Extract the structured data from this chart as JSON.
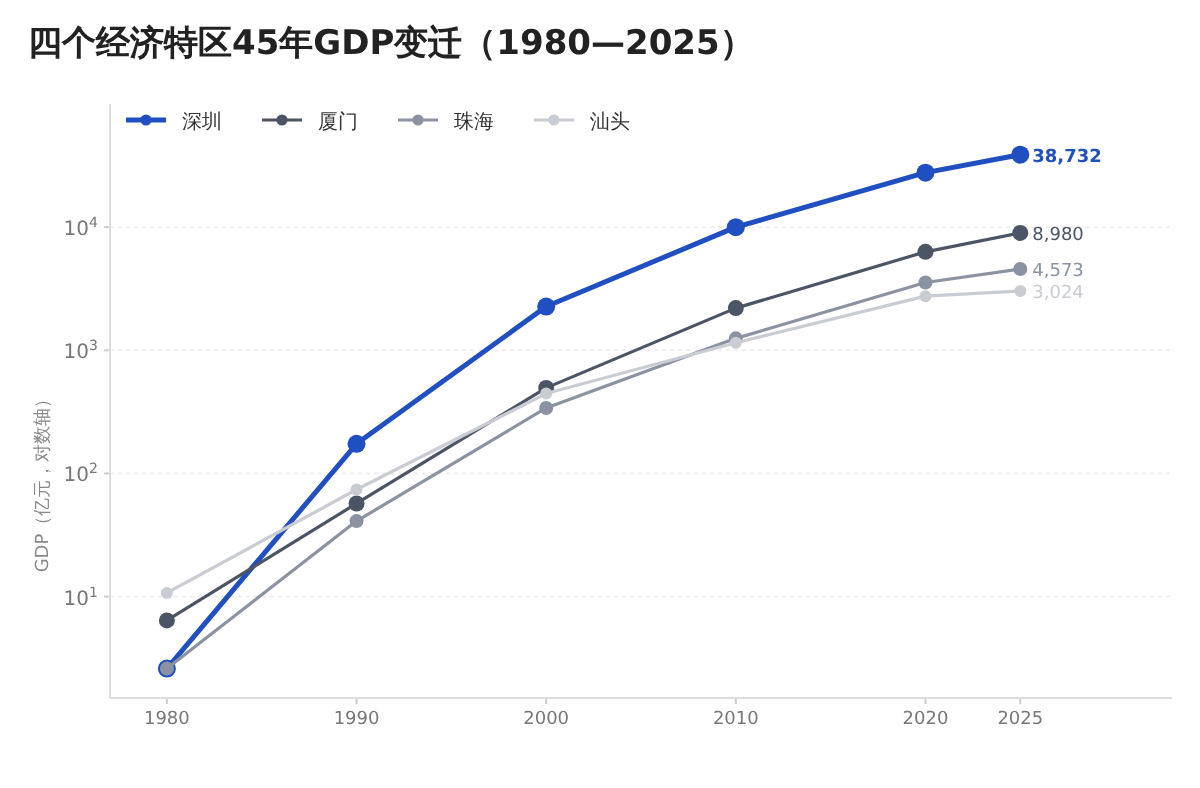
{
  "chart_data": {
    "type": "line",
    "title": "四个经济特区45年GDP变迁（1980—2025）",
    "ylabel": "GDP（亿元，对数轴）",
    "x": [
      1980,
      1990,
      2000,
      2010,
      2020,
      2025
    ],
    "series": [
      {
        "name": "深圳",
        "color": "#1f4fc1",
        "values": [
          2.6,
          174,
          2265,
          10000,
          27700,
          38732
        ],
        "value_labels": [
          null,
          null,
          null,
          null,
          null,
          "38,732"
        ]
      },
      {
        "name": "厦门",
        "color": "#4b5566",
        "values": [
          6.4,
          57,
          495,
          2200,
          6300,
          8980
        ],
        "value_labels": [
          null,
          null,
          null,
          null,
          null,
          "8,980"
        ]
      },
      {
        "name": "珠海",
        "color": "#8b93a3",
        "values": [
          2.6,
          41,
          340,
          1250,
          3550,
          4573
        ],
        "value_labels": [
          null,
          null,
          null,
          null,
          null,
          "4,573"
        ]
      },
      {
        "name": "汕头",
        "color": "#c9ccd3",
        "values": [
          10.7,
          74,
          445,
          1150,
          2750,
          3024
        ],
        "value_labels": [
          null,
          null,
          null,
          null,
          null,
          "3,024"
        ]
      }
    ],
    "log": true,
    "xlim": [
      1977,
      2033
    ],
    "ylim": [
      1.5,
      100000
    ],
    "xticks": [
      1980,
      1990,
      2000,
      2010,
      2020,
      2025
    ],
    "yticks": [
      {
        "value": 10,
        "label": "10$^{1}$"
      },
      {
        "value": 100,
        "label": "10$^{2}$"
      },
      {
        "value": 1000,
        "label": "10$^{3}$"
      },
      {
        "value": 10000,
        "label": "10$^{4}$"
      }
    ],
    "grid": "y",
    "legend": "top left",
    "marker": "circle",
    "line_style": "solid"
  }
}
